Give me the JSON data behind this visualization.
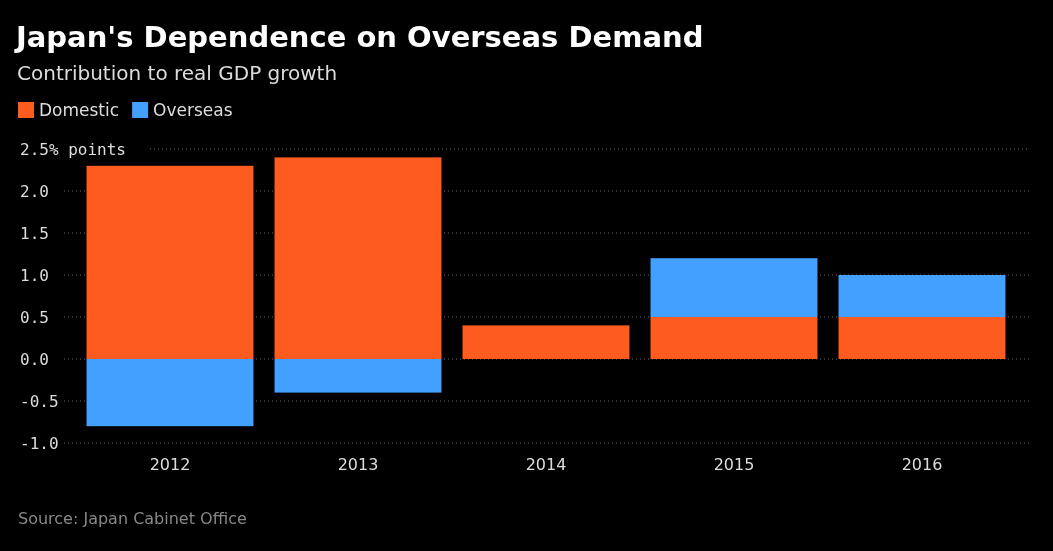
{
  "chart_data": {
    "type": "bar",
    "title": "Japan's Dependence on Overseas Demand",
    "subtitle": "Contribution to real GDP growth",
    "categories": [
      "2012",
      "2013",
      "2014",
      "2015",
      "2016"
    ],
    "stacked": true,
    "series": [
      {
        "name": "Domestic",
        "color": "#fe5b20",
        "values": [
          2.3,
          2.4,
          0.4,
          0.5,
          0.5
        ]
      },
      {
        "name": "Overseas",
        "color": "#44a0fe",
        "values": [
          -0.8,
          -0.4,
          0,
          0.7,
          0.5
        ]
      }
    ],
    "ylim": [
      -1.0,
      2.5
    ],
    "yticks": [
      {
        "value": -1.0,
        "label": "-1.0"
      },
      {
        "value": -0.5,
        "label": "-0.5"
      },
      {
        "value": 0,
        "label": "0.0"
      },
      {
        "value": 0.5,
        "label": "0.5"
      },
      {
        "value": 1.0,
        "label": "1.0"
      },
      {
        "value": 1.5,
        "label": "1.5"
      },
      {
        "value": 2.0,
        "label": "2.0"
      },
      {
        "value": 2.5,
        "label": "2.5% points"
      }
    ],
    "grid": "y",
    "legend": "top left",
    "annotations": [
      "Source: Japan Cabinet Office"
    ]
  }
}
